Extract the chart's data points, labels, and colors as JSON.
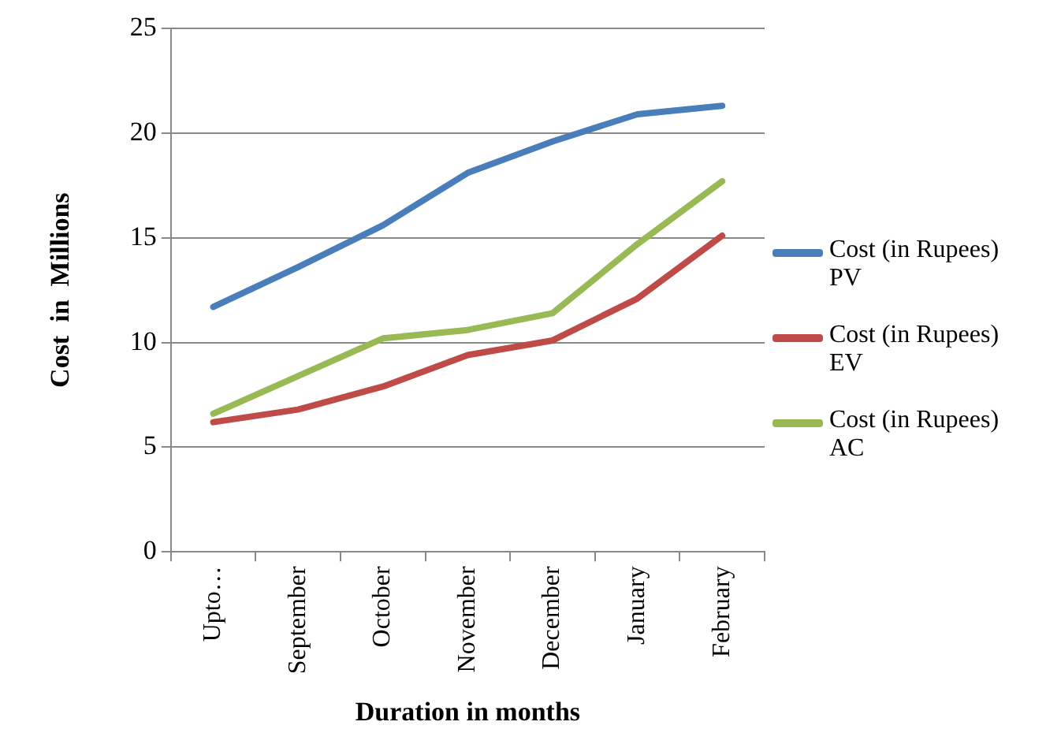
{
  "chart_data": {
    "type": "line",
    "xlabel": "Duration in months",
    "ylabel": "Cost  in  Millions",
    "categories": [
      "Upto…",
      "September",
      "October",
      "November",
      "December",
      "January",
      "February"
    ],
    "series": [
      {
        "name": "Cost (in Rupees) PV",
        "color": "#4a7ebb",
        "values": [
          11.7,
          13.6,
          15.6,
          18.1,
          19.6,
          20.9,
          21.3
        ]
      },
      {
        "name": "Cost (in Rupees) EV",
        "color": "#be4b48",
        "values": [
          6.2,
          6.8,
          7.9,
          9.4,
          10.1,
          12.1,
          15.1
        ]
      },
      {
        "name": "Cost (in Rupees) AC",
        "color": "#98b954",
        "values": [
          6.6,
          8.4,
          10.2,
          10.6,
          11.4,
          14.7,
          17.7
        ]
      }
    ],
    "ylim": [
      0,
      25
    ],
    "yticks": [
      0,
      5,
      10,
      15,
      20,
      25
    ],
    "grid": "y",
    "legend": "right",
    "marker": "none",
    "line_style": "solid"
  }
}
